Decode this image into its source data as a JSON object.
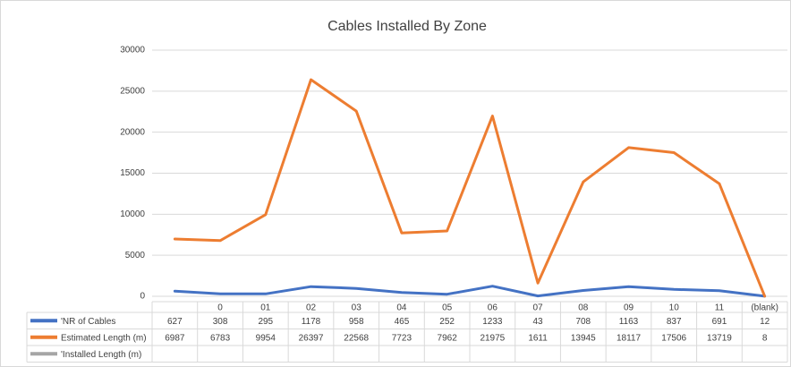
{
  "chart_data": {
    "type": "line",
    "title": "Cables Installed By Zone",
    "categories": [
      null,
      "0",
      "01",
      "02",
      "03",
      "04",
      "05",
      "06",
      "07",
      "08",
      "09",
      "10",
      "11",
      "(blank)"
    ],
    "series": [
      {
        "name": "'NR of Cables",
        "color": "#4472c4",
        "values": [
          627,
          308,
          295,
          1178,
          958,
          465,
          252,
          1233,
          43,
          708,
          1163,
          837,
          691,
          12
        ]
      },
      {
        "name": "Estimated Length (m)",
        "color": "#ed7d31",
        "values": [
          6987,
          6783,
          9954,
          26397,
          22568,
          7723,
          7962,
          21975,
          1611,
          13945,
          18117,
          17506,
          13719,
          8
        ]
      },
      {
        "name": "'Installed Length (m)",
        "color": "#a5a5a5",
        "values": [
          null,
          null,
          null,
          null,
          null,
          null,
          null,
          null,
          null,
          null,
          null,
          null,
          null,
          null
        ]
      }
    ],
    "ylim": [
      0,
      30000
    ],
    "yticks": [
      0,
      5000,
      10000,
      15000,
      20000,
      25000,
      30000
    ],
    "grid": true
  }
}
